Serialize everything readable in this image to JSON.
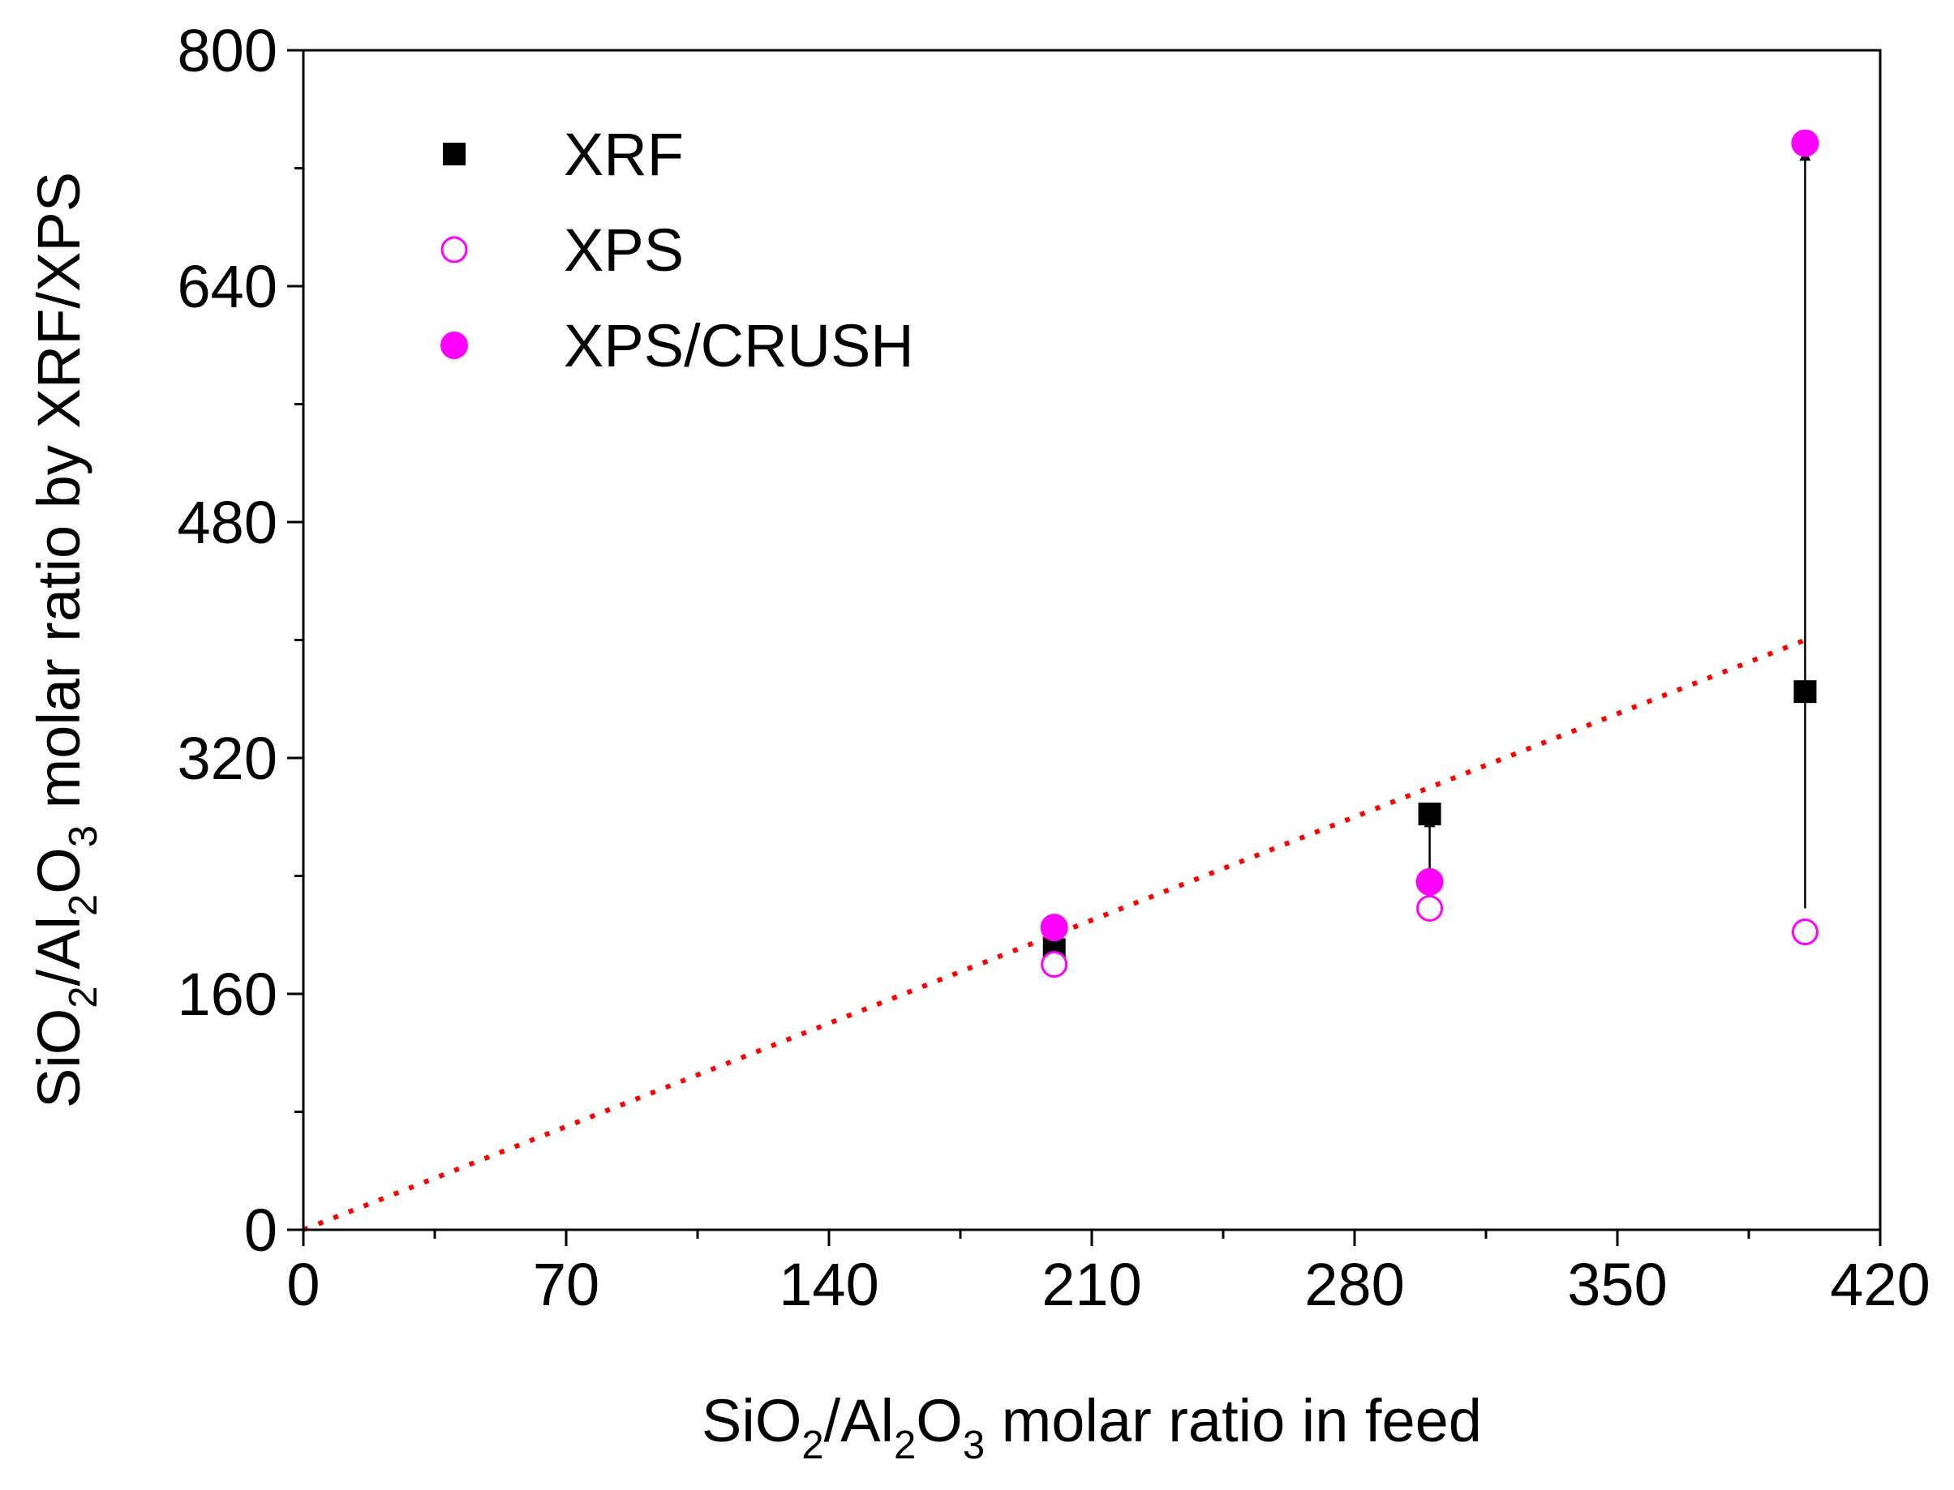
{
  "chart_data": {
    "type": "scatter",
    "title": "",
    "xlabel": {
      "parts": [
        {
          "text": "SiO",
          "sub": false
        },
        {
          "text": "2",
          "sub": true
        },
        {
          "text": "/Al",
          "sub": false
        },
        {
          "text": "2",
          "sub": true
        },
        {
          "text": "O",
          "sub": false
        },
        {
          "text": "3",
          "sub": true
        },
        {
          "text": " molar ratio in feed",
          "sub": false
        }
      ]
    },
    "ylabel": {
      "parts": [
        {
          "text": "SiO",
          "sub": false
        },
        {
          "text": "2",
          "sub": true
        },
        {
          "text": "/Al",
          "sub": false
        },
        {
          "text": "2",
          "sub": true
        },
        {
          "text": "O",
          "sub": false
        },
        {
          "text": "3",
          "sub": true
        },
        {
          "text": " molar ratio by XRF/XPS",
          "sub": false
        }
      ]
    },
    "xlim": [
      0,
      420
    ],
    "ylim": [
      0,
      800
    ],
    "xticks": [
      0,
      70,
      140,
      210,
      280,
      350,
      420
    ],
    "yticks": [
      0,
      160,
      320,
      480,
      640,
      800
    ],
    "x_minor_step": 35,
    "y_minor_step": 80,
    "grid": false,
    "legend_position": "top-left",
    "series": [
      {
        "name": "XRF",
        "marker": "square-filled",
        "color": "#000000",
        "points": [
          [
            200,
            190
          ],
          [
            300,
            282
          ],
          [
            400,
            365
          ]
        ]
      },
      {
        "name": "XPS",
        "marker": "circle-open",
        "color": "#ff00ff",
        "points": [
          [
            200,
            180
          ],
          [
            300,
            218
          ],
          [
            400,
            202
          ]
        ]
      },
      {
        "name": "XPS/CRUSH",
        "marker": "circle-filled",
        "color": "#ff00ff",
        "points": [
          [
            200,
            205
          ],
          [
            300,
            236
          ],
          [
            400,
            737
          ]
        ]
      }
    ],
    "reference_line": {
      "style": "dotted",
      "color": "#ff0000",
      "points": [
        [
          0,
          0
        ],
        [
          400,
          400
        ]
      ]
    },
    "arrows": [
      {
        "from": [
          300,
          222
        ],
        "to": [
          300,
          280
        ],
        "color": "#000000"
      },
      {
        "from": [
          400,
          218
        ],
        "to": [
          400,
          732
        ],
        "color": "#000000"
      }
    ]
  }
}
